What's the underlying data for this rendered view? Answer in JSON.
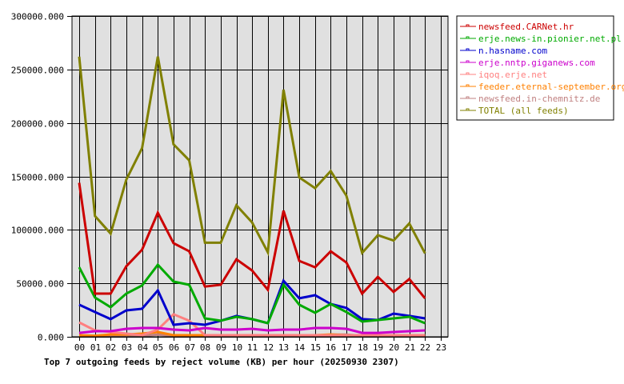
{
  "chart_data": {
    "type": "line",
    "title": "Top 7 outgoing feeds by reject volume (KB) per hour (20250930 2307)",
    "xlabel": "",
    "ylabel": "",
    "ylim": [
      0,
      300000
    ],
    "yticks": [
      "0.000",
      "50000.000",
      "100000.000",
      "150000.000",
      "200000.000",
      "250000.000",
      "300000.000"
    ],
    "ytick_values": [
      0,
      50000,
      100000,
      150000,
      200000,
      250000,
      300000
    ],
    "x": [
      "00",
      "01",
      "02",
      "03",
      "04",
      "05",
      "06",
      "07",
      "08",
      "09",
      "10",
      "11",
      "12",
      "13",
      "14",
      "15",
      "16",
      "17",
      "18",
      "19",
      "20",
      "21",
      "22",
      "23"
    ],
    "grid": true,
    "legend_position": "right",
    "background": "#e0e0e0",
    "series": [
      {
        "name": "newsfeed.CARNet.hr",
        "color": "#cc0000",
        "values": [
          144000,
          40400,
          40400,
          66000,
          81500,
          116000,
          87500,
          80000,
          47000,
          48600,
          72500,
          62000,
          44000,
          118000,
          71000,
          65000,
          80000,
          69500,
          40400,
          56000,
          42000,
          54000,
          36000
        ]
      },
      {
        "name": "erje.news-in.pionier.net.pl",
        "color": "#00aa00",
        "values": [
          65000,
          36700,
          27700,
          40400,
          48000,
          67300,
          51600,
          48600,
          17200,
          15000,
          18700,
          16500,
          12700,
          48600,
          30000,
          22500,
          30700,
          23200,
          14200,
          15700,
          17200,
          18700,
          12700
        ]
      },
      {
        "name": "n.hasname.com",
        "color": "#0000cc",
        "values": [
          30000,
          23200,
          16500,
          24700,
          26200,
          43400,
          11200,
          12700,
          11200,
          15000,
          19500,
          16500,
          12700,
          52400,
          36000,
          38900,
          30700,
          27000,
          16500,
          15700,
          21700,
          19500,
          17200
        ]
      },
      {
        "name": "erje.nntp.giganews.com",
        "color": "#cc00cc",
        "values": [
          3700,
          5200,
          5200,
          7500,
          8200,
          8200,
          6700,
          6000,
          8200,
          6700,
          6700,
          7500,
          6000,
          6700,
          6700,
          8200,
          8200,
          7500,
          3700,
          3700,
          4500,
          5200,
          6000
        ]
      },
      {
        "name": "iqoq.erje.net",
        "color": "#ff8080",
        "values": [
          13500,
          6000,
          4500,
          3000,
          1500,
          6700,
          21000,
          15000,
          1500,
          1500,
          1500,
          1500,
          1500,
          1500,
          1500,
          1500,
          1500,
          1500,
          1500,
          1500,
          1500,
          1500,
          1500
        ]
      },
      {
        "name": "feeder.eternal-september.org",
        "color": "#ff8000",
        "values": [
          1500,
          1000,
          2200,
          2200,
          3000,
          4500,
          1500,
          1500,
          1500,
          1500,
          1500,
          1500,
          1500,
          1500,
          1500,
          1500,
          2200,
          1500,
          1500,
          1500,
          1500,
          1500,
          1500
        ]
      },
      {
        "name": "newsfeed.in-chemnitz.de",
        "color": "#c08080",
        "values": [
          1000,
          1000,
          1000,
          1000,
          1000,
          2000,
          1000,
          1000,
          1000,
          1000,
          1000,
          1000,
          1000,
          1000,
          1000,
          1000,
          2000,
          2000,
          1000,
          1000,
          1000,
          1000,
          1000
        ]
      },
      {
        "name": "TOTAL (all feeds)",
        "color": "#808000",
        "values": [
          262000,
          113000,
          96500,
          147000,
          176500,
          262000,
          180000,
          165000,
          88000,
          88000,
          123000,
          107000,
          79000,
          231000,
          149000,
          139000,
          155000,
          132000,
          78500,
          95000,
          90000,
          106000,
          78000
        ]
      }
    ]
  }
}
